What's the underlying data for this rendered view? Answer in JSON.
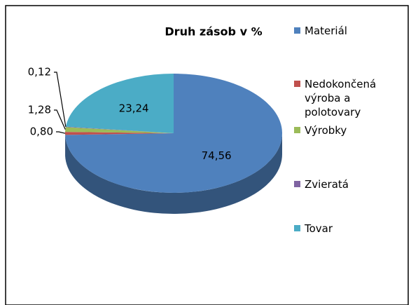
{
  "chart_data": {
    "type": "pie",
    "title": "Druh zásob v %",
    "categories": [
      "Materiál",
      "Nedokončená výroba a polotovary",
      "Výrobky",
      "Zvieratá",
      "Tovar"
    ],
    "values": [
      74.56,
      0.8,
      1.28,
      0.12,
      23.24
    ],
    "value_labels": [
      "74,56",
      "0,80",
      "1,28",
      "0,12",
      "23,24"
    ],
    "colors": [
      "#4F81BD",
      "#C0504D",
      "#9BBB59",
      "#8064A2",
      "#4BACC6"
    ],
    "legend": "right"
  }
}
